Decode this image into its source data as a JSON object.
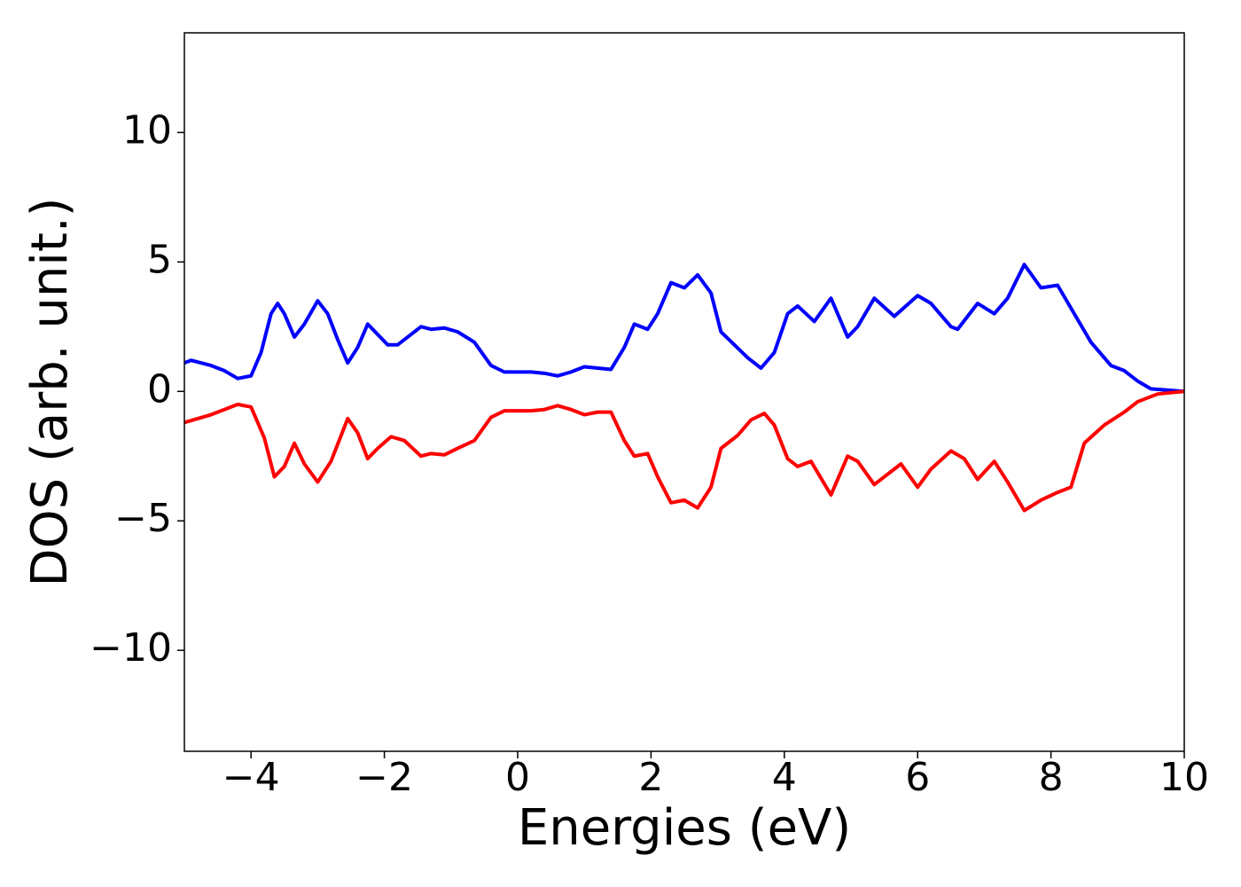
{
  "chart_data": {
    "type": "line",
    "xlabel": "Energies (eV)",
    "ylabel": "DOS (arb. unit.)",
    "xlim": [
      -5,
      10
    ],
    "ylim": [
      -13.9,
      13.85
    ],
    "xticks": [
      {
        "value": -4,
        "label": "−4"
      },
      {
        "value": -2,
        "label": "−2"
      },
      0,
      2,
      4,
      6,
      8,
      10
    ],
    "yticks": [
      {
        "value": -10,
        "label": "−10"
      },
      {
        "value": -5,
        "label": "−5"
      },
      0,
      5,
      10
    ],
    "grid": false,
    "series": [
      {
        "color": "#0000ff",
        "x": [
          -5,
          -4.9,
          -4.6,
          -4.4,
          -4.2,
          -4.0,
          -3.85,
          -3.7,
          -3.6,
          -3.5,
          -3.35,
          -3.2,
          -3.0,
          -2.85,
          -2.7,
          -2.55,
          -2.4,
          -2.25,
          -2.1,
          -1.95,
          -1.8,
          -1.6,
          -1.45,
          -1.3,
          -1.1,
          -0.9,
          -0.65,
          -0.4,
          -0.2,
          0.2,
          0.4,
          0.6,
          0.8,
          1.0,
          1.2,
          1.4,
          1.6,
          1.75,
          1.95,
          2.1,
          2.3,
          2.5,
          2.7,
          2.9,
          3.05,
          3.25,
          3.45,
          3.65,
          3.85,
          4.05,
          4.2,
          4.45,
          4.7,
          4.95,
          5.1,
          5.35,
          5.65,
          6.0,
          6.2,
          6.5,
          6.6,
          6.9,
          7.15,
          7.35,
          7.6,
          7.85,
          8.1,
          8.35,
          8.6,
          8.9,
          9.1,
          9.3,
          9.5,
          10
        ],
        "values": [
          1.1,
          1.2,
          1.0,
          0.8,
          0.5,
          0.6,
          1.5,
          3.0,
          3.4,
          3.0,
          2.1,
          2.6,
          3.5,
          3.0,
          2.0,
          1.1,
          1.7,
          2.6,
          2.2,
          1.8,
          1.8,
          2.2,
          2.5,
          2.4,
          2.45,
          2.3,
          1.9,
          1.0,
          0.75,
          0.75,
          0.7,
          0.6,
          0.75,
          0.95,
          0.9,
          0.85,
          1.7,
          2.6,
          2.4,
          3.0,
          4.2,
          4.0,
          4.5,
          3.8,
          2.3,
          1.8,
          1.3,
          0.9,
          1.5,
          3.0,
          3.3,
          2.7,
          3.6,
          2.1,
          2.5,
          3.6,
          2.9,
          3.7,
          3.4,
          2.5,
          2.4,
          3.4,
          3.0,
          3.6,
          4.9,
          4.0,
          4.1,
          3.0,
          1.9,
          1.0,
          0.8,
          0.4,
          0.1,
          0
        ]
      },
      {
        "color": "#ff0000",
        "x": [
          -5,
          -4.6,
          -4.2,
          -4.0,
          -3.8,
          -3.65,
          -3.5,
          -3.35,
          -3.2,
          -3.0,
          -2.8,
          -2.55,
          -2.4,
          -2.25,
          -2.1,
          -1.9,
          -1.7,
          -1.45,
          -1.3,
          -1.1,
          -0.9,
          -0.65,
          -0.4,
          -0.2,
          0.2,
          0.4,
          0.6,
          0.8,
          1.0,
          1.2,
          1.4,
          1.6,
          1.75,
          1.95,
          2.1,
          2.3,
          2.5,
          2.7,
          2.9,
          3.05,
          3.3,
          3.5,
          3.7,
          3.85,
          4.05,
          4.2,
          4.4,
          4.7,
          4.95,
          5.1,
          5.35,
          5.75,
          6.0,
          6.2,
          6.5,
          6.7,
          6.9,
          7.15,
          7.35,
          7.6,
          7.85,
          8.1,
          8.3,
          8.5,
          8.8,
          9.1,
          9.3,
          9.6,
          10
        ],
        "values": [
          -1.2,
          -0.9,
          -0.5,
          -0.6,
          -1.8,
          -3.3,
          -2.9,
          -2.0,
          -2.8,
          -3.5,
          -2.7,
          -1.05,
          -1.6,
          -2.6,
          -2.2,
          -1.75,
          -1.9,
          -2.5,
          -2.4,
          -2.45,
          -2.2,
          -1.9,
          -1.0,
          -0.75,
          -0.75,
          -0.7,
          -0.55,
          -0.7,
          -0.9,
          -0.8,
          -0.8,
          -1.9,
          -2.5,
          -2.4,
          -3.3,
          -4.3,
          -4.2,
          -4.5,
          -3.7,
          -2.2,
          -1.7,
          -1.1,
          -0.85,
          -1.3,
          -2.6,
          -2.9,
          -2.7,
          -4.0,
          -2.5,
          -2.7,
          -3.6,
          -2.8,
          -3.7,
          -3.0,
          -2.3,
          -2.6,
          -3.4,
          -2.7,
          -3.5,
          -4.6,
          -4.2,
          -3.9,
          -3.7,
          -2.0,
          -1.3,
          -0.8,
          -0.4,
          -0.1,
          0
        ]
      }
    ]
  }
}
